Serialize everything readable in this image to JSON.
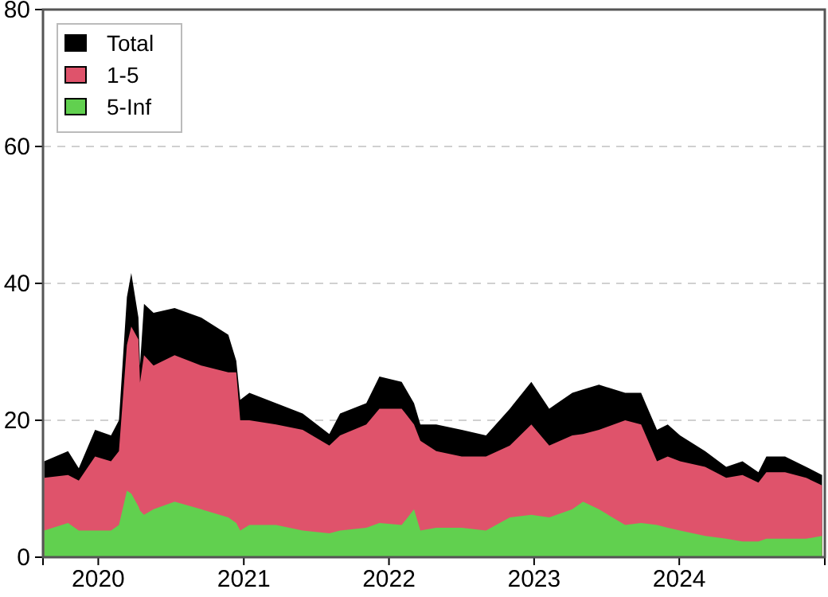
{
  "chart_data": {
    "type": "area",
    "x": [
      "2019-08-18",
      "2019-10-17",
      "2019-11-13",
      "2019-12-24",
      "2020-02-02",
      "2020-02-22",
      "2020-03-13",
      "2020-03-24",
      "2020-04-11",
      "2020-04-15",
      "2020-04-25",
      "2020-05-19",
      "2020-07-11",
      "2020-09-16",
      "2020-11-23",
      "2020-12-13",
      "2020-12-23",
      "2021-01-15",
      "2021-03-23",
      "2021-05-29",
      "2021-08-04",
      "2021-08-31",
      "2021-11-05",
      "2021-12-08",
      "2022-02-02",
      "2022-03-05",
      "2022-03-21",
      "2022-04-30",
      "2022-07-03",
      "2022-09-02",
      "2022-11-01",
      "2022-12-25",
      "2023-02-08",
      "2023-04-07",
      "2023-05-04",
      "2023-06-13",
      "2023-08-18",
      "2023-09-27",
      "2023-11-06",
      "2023-12-03",
      "2024-01-03",
      "2024-03-06",
      "2024-04-28",
      "2024-06-08",
      "2024-07-18",
      "2024-08-07",
      "2024-09-23",
      "2024-11-15",
      "2024-12-25"
    ],
    "series": [
      {
        "name": "Total",
        "color": "#000000",
        "values": [
          14,
          15.5,
          13,
          18.6,
          17.8,
          20,
          38,
          41.5,
          35,
          28,
          37,
          35.7,
          36.4,
          35,
          32.5,
          28.7,
          23,
          24,
          22.5,
          21,
          18,
          21,
          22.5,
          26.4,
          25.6,
          22.5,
          19.4,
          19.4,
          18.6,
          17.8,
          21.7,
          25.6,
          21.7,
          24,
          24.5,
          25.2,
          24,
          24,
          18.6,
          19.4,
          17.8,
          15.5,
          13.2,
          14,
          12.4,
          14.7,
          14.7,
          13.2,
          12
        ]
      },
      {
        "name": "1-5",
        "color": "#df536b",
        "values": [
          11.6,
          12,
          11.2,
          14.7,
          14,
          15.5,
          31,
          33.7,
          31.8,
          25.5,
          29.5,
          28,
          29.5,
          28,
          27,
          27,
          20,
          20,
          19.4,
          18.6,
          16.3,
          17.8,
          19.4,
          21.7,
          21.7,
          19.4,
          17,
          15.5,
          14.7,
          14.7,
          16.3,
          19.4,
          16.3,
          17.8,
          18,
          18.6,
          20,
          19.4,
          14,
          14.7,
          14,
          13.2,
          11.6,
          12,
          10.9,
          12.4,
          12.4,
          11.6,
          10.5
        ]
      },
      {
        "name": "5-Inf",
        "color": "#61d04f",
        "values": [
          3.9,
          5,
          3.9,
          3.9,
          3.9,
          4.7,
          9.7,
          9.3,
          7.4,
          6.8,
          6.2,
          7,
          8.1,
          7,
          5.8,
          5,
          3.9,
          4.7,
          4.7,
          3.9,
          3.5,
          3.9,
          4.3,
          5,
          4.7,
          7,
          3.9,
          4.3,
          4.3,
          3.9,
          5.8,
          6.2,
          5.8,
          7,
          8.1,
          7,
          4.7,
          5,
          4.7,
          4.3,
          3.9,
          3.1,
          2.7,
          2.3,
          2.3,
          2.7,
          2.7,
          2.7,
          3.1
        ]
      }
    ],
    "xlim": [
      "2019-08-15",
      "2025-01-01"
    ],
    "xticks": [
      {
        "value": "2020-01-01",
        "label": "2020"
      },
      {
        "value": "2021-01-01",
        "label": "2021"
      },
      {
        "value": "2022-01-01",
        "label": "2022"
      },
      {
        "value": "2023-01-01",
        "label": "2023"
      },
      {
        "value": "2024-01-01",
        "label": "2024"
      }
    ],
    "ylim": [
      0,
      80
    ],
    "yticks": [
      0,
      20,
      40,
      60,
      80
    ],
    "grid": "y",
    "legend": "top left"
  }
}
